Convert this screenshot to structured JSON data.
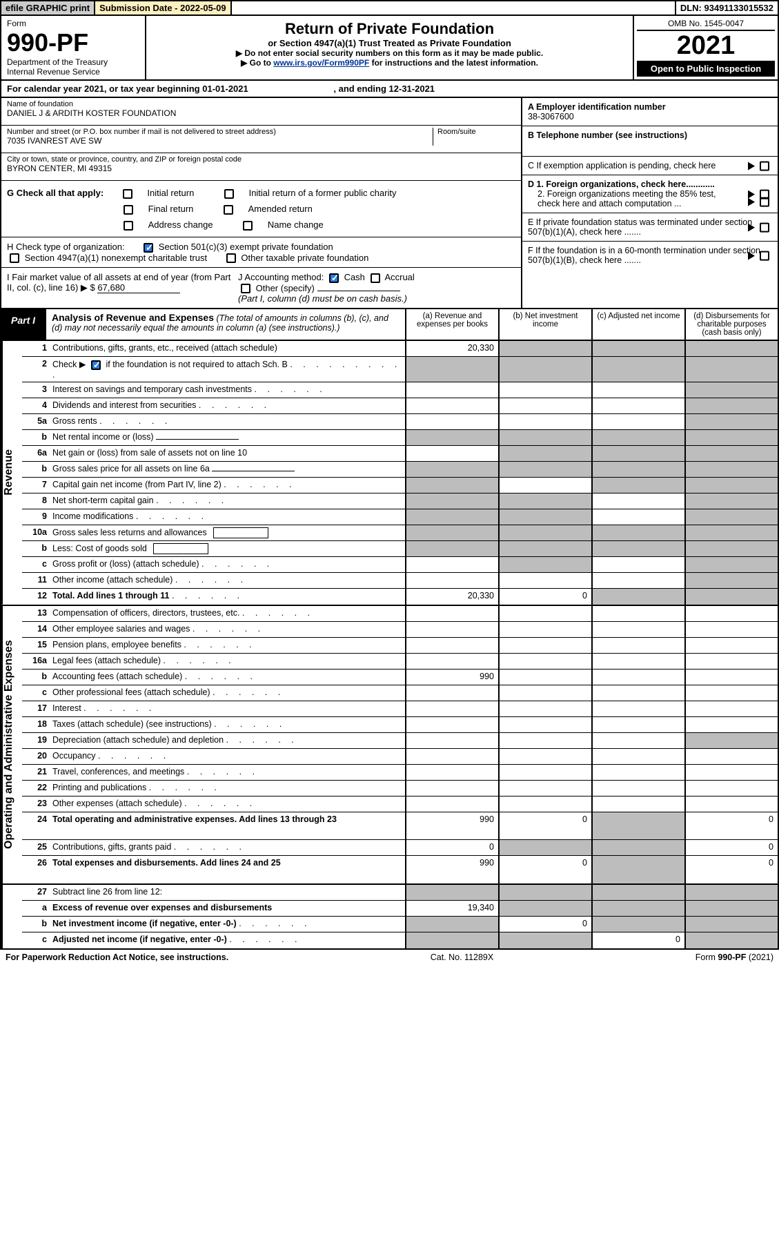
{
  "top": {
    "efile": "efile GRAPHIC print",
    "sub_date_label": "Submission Date - 2022-05-09",
    "dln": "DLN: 93491133015532"
  },
  "header": {
    "form_label": "Form",
    "form_num": "990-PF",
    "dept1": "Department of the Treasury",
    "dept2": "Internal Revenue Service",
    "title": "Return of Private Foundation",
    "subtitle": "or Section 4947(a)(1) Trust Treated as Private Foundation",
    "note1": "▶ Do not enter social security numbers on this form as it may be made public.",
    "note2_pre": "▶ Go to ",
    "note2_link": "www.irs.gov/Form990PF",
    "note2_post": " for instructions and the latest information.",
    "omb": "OMB No. 1545-0047",
    "year": "2021",
    "open_pub": "Open to Public Inspection"
  },
  "cal_year": {
    "prefix": "For calendar year 2021, or tax year beginning ",
    "begin": "01-01-2021",
    "mid": " , and ending ",
    "end": "12-31-2021"
  },
  "info_left": {
    "name_lbl": "Name of foundation",
    "name_val": "DANIEL J & ARDITH KOSTER FOUNDATION",
    "addr_lbl": "Number and street (or P.O. box number if mail is not delivered to street address)",
    "room_lbl": "Room/suite",
    "addr_val": "7035 IVANREST AVE SW",
    "city_lbl": "City or town, state or province, country, and ZIP or foreign postal code",
    "city_val": "BYRON CENTER, MI  49315"
  },
  "info_right": {
    "a_lbl": "A Employer identification number",
    "a_val": "38-3067600",
    "b_lbl": "B Telephone number (see instructions)",
    "c_lbl": "C If exemption application is pending, check here",
    "d1": "D 1. Foreign organizations, check here............",
    "d2": "2. Foreign organizations meeting the 85% test, check here and attach computation ...",
    "e": "E  If private foundation status was terminated under section 507(b)(1)(A), check here .......",
    "f": "F  If the foundation is in a 60-month termination under section 507(b)(1)(B), check here ......."
  },
  "section_g": {
    "prefix": "G Check all that apply:",
    "opts": [
      "Initial return",
      "Initial return of a former public charity",
      "Final return",
      "Amended return",
      "Address change",
      "Name change"
    ]
  },
  "section_h": {
    "prefix": "H Check type of organization:",
    "opt1": "Section 501(c)(3) exempt private foundation",
    "opt2": "Section 4947(a)(1) nonexempt charitable trust",
    "opt3": "Other taxable private foundation"
  },
  "section_i": {
    "i_pre": "I Fair market value of all assets at end of year (from Part II, col. (c), line 16) ▶ $",
    "i_val": "67,680",
    "j_pre": "J Accounting method:",
    "j_cash": "Cash",
    "j_accrual": "Accrual",
    "j_other": "Other (specify)",
    "j_note": "(Part I, column (d) must be on cash basis.)"
  },
  "part1": {
    "tab": "Part I",
    "title": "Analysis of Revenue and Expenses",
    "note": " (The total of amounts in columns (b), (c), and (d) may not necessarily equal the amounts in column (a) (see instructions).)",
    "col_a": "(a) Revenue and expenses per books",
    "col_b": "(b) Net investment income",
    "col_c": "(c) Adjusted net income",
    "col_d": "(d) Disbursements for charitable purposes (cash basis only)"
  },
  "side_labels": {
    "rev": "Revenue",
    "exp": "Operating and Administrative Expenses"
  },
  "lines": {
    "1": {
      "n": "1",
      "d": "Contributions, gifts, grants, etc., received (attach schedule)",
      "a": "20,330"
    },
    "2": {
      "n": "2",
      "d_pre": "Check ▶",
      "d_post": " if the foundation is not required to attach Sch. B"
    },
    "3": {
      "n": "3",
      "d": "Interest on savings and temporary cash investments"
    },
    "4": {
      "n": "4",
      "d": "Dividends and interest from securities"
    },
    "5a": {
      "n": "5a",
      "d": "Gross rents"
    },
    "5b": {
      "n": "b",
      "d": "Net rental income or (loss)"
    },
    "6a": {
      "n": "6a",
      "d": "Net gain or (loss) from sale of assets not on line 10"
    },
    "6b": {
      "n": "b",
      "d": "Gross sales price for all assets on line 6a"
    },
    "7": {
      "n": "7",
      "d": "Capital gain net income (from Part IV, line 2)"
    },
    "8": {
      "n": "8",
      "d": "Net short-term capital gain"
    },
    "9": {
      "n": "9",
      "d": "Income modifications"
    },
    "10a": {
      "n": "10a",
      "d": "Gross sales less returns and allowances"
    },
    "10b": {
      "n": "b",
      "d": "Less: Cost of goods sold"
    },
    "10c": {
      "n": "c",
      "d": "Gross profit or (loss) (attach schedule)"
    },
    "11": {
      "n": "11",
      "d": "Other income (attach schedule)"
    },
    "12": {
      "n": "12",
      "d": "Total. Add lines 1 through 11",
      "a": "20,330",
      "b": "0"
    },
    "13": {
      "n": "13",
      "d": "Compensation of officers, directors, trustees, etc."
    },
    "14": {
      "n": "14",
      "d": "Other employee salaries and wages"
    },
    "15": {
      "n": "15",
      "d": "Pension plans, employee benefits"
    },
    "16a": {
      "n": "16a",
      "d": "Legal fees (attach schedule)"
    },
    "16b": {
      "n": "b",
      "d": "Accounting fees (attach schedule)",
      "a": "990"
    },
    "16c": {
      "n": "c",
      "d": "Other professional fees (attach schedule)"
    },
    "17": {
      "n": "17",
      "d": "Interest"
    },
    "18": {
      "n": "18",
      "d": "Taxes (attach schedule) (see instructions)"
    },
    "19": {
      "n": "19",
      "d": "Depreciation (attach schedule) and depletion"
    },
    "20": {
      "n": "20",
      "d": "Occupancy"
    },
    "21": {
      "n": "21",
      "d": "Travel, conferences, and meetings"
    },
    "22": {
      "n": "22",
      "d": "Printing and publications"
    },
    "23": {
      "n": "23",
      "d": "Other expenses (attach schedule)"
    },
    "24": {
      "n": "24",
      "d": "Total operating and administrative expenses. Add lines 13 through 23",
      "a": "990",
      "b": "0",
      "dd": "0"
    },
    "25": {
      "n": "25",
      "d": "Contributions, gifts, grants paid",
      "a": "0",
      "dd": "0"
    },
    "26": {
      "n": "26",
      "d": "Total expenses and disbursements. Add lines 24 and 25",
      "a": "990",
      "b": "0",
      "dd": "0"
    },
    "27": {
      "n": "27",
      "d": "Subtract line 26 from line 12:"
    },
    "27a": {
      "n": "a",
      "d": "Excess of revenue over expenses and disbursements",
      "a": "19,340"
    },
    "27b": {
      "n": "b",
      "d": "Net investment income (if negative, enter -0-)",
      "b": "0"
    },
    "27c": {
      "n": "c",
      "d": "Adjusted net income (if negative, enter -0-)",
      "c": "0"
    }
  },
  "footer": {
    "left": "For Paperwork Reduction Act Notice, see instructions.",
    "mid": "Cat. No. 11289X",
    "right": "Form 990-PF (2021)"
  },
  "colors": {
    "tab_bg": "#000000",
    "grey_cell": "#bdbdbd",
    "check_blue": "#2a7de1",
    "link": "#003399"
  }
}
